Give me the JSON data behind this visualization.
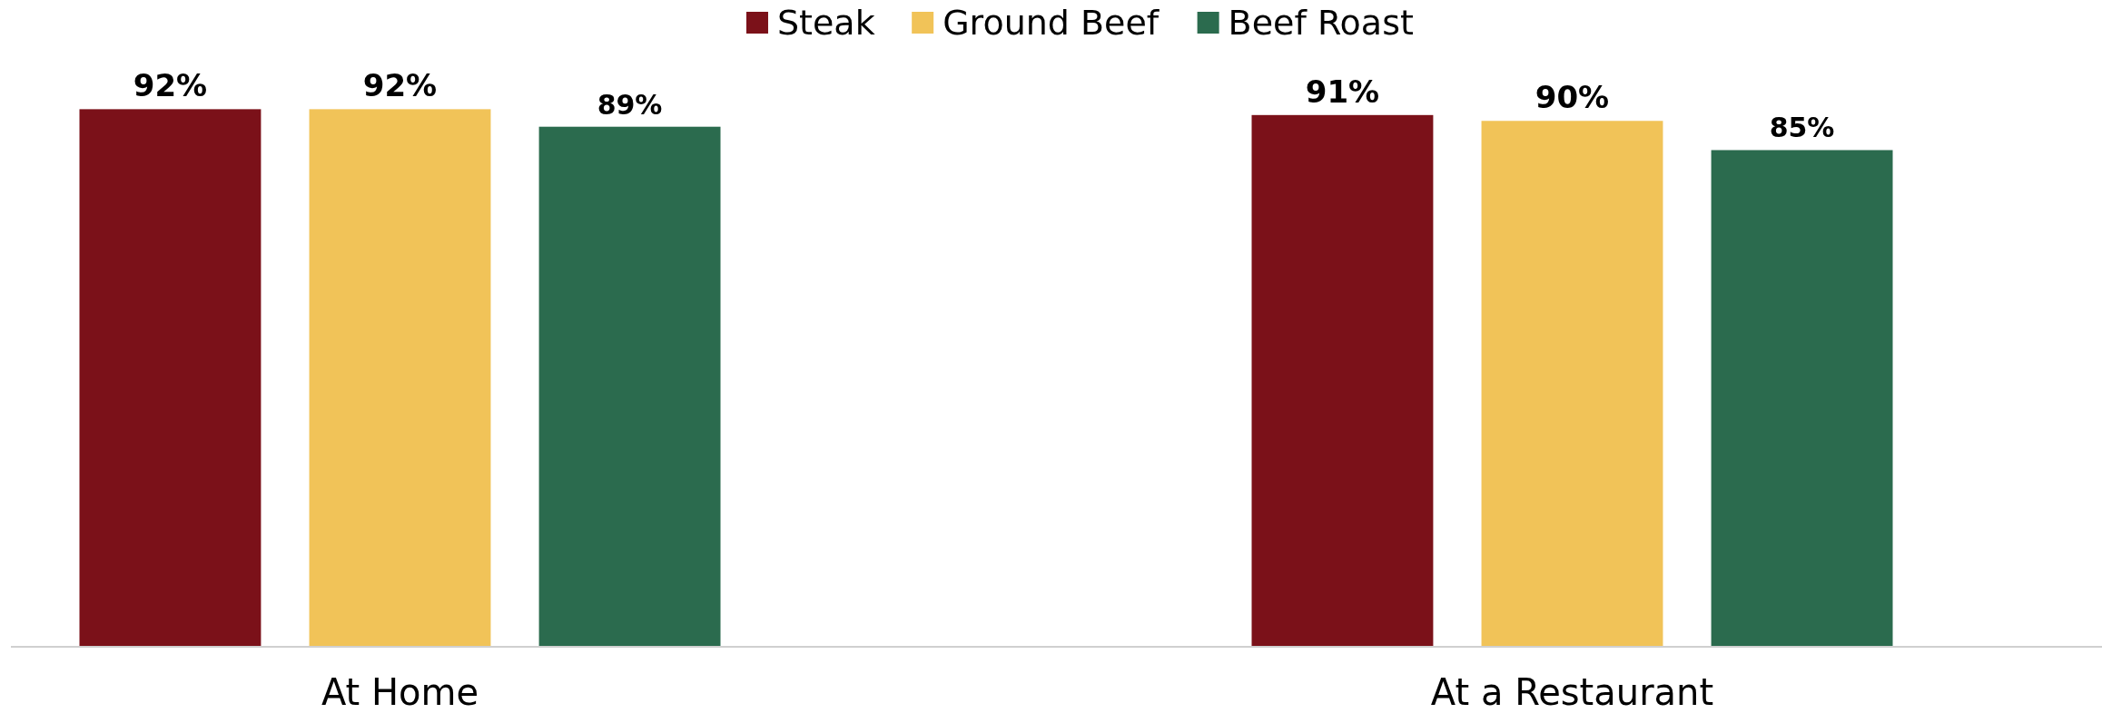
{
  "chart_data": {
    "type": "bar",
    "categories": [
      "At Home",
      "At a Restaurant"
    ],
    "series": [
      {
        "name": "Steak",
        "color": "#7b1119",
        "values": [
          92,
          91
        ],
        "value_labels": [
          "92%",
          "91%"
        ]
      },
      {
        "name": "Ground Beef",
        "color": "#f1c358",
        "values": [
          92,
          90
        ],
        "value_labels": [
          "92%",
          "90%"
        ]
      },
      {
        "name": "Beef Roast",
        "color": "#2b6b4e",
        "values": [
          89,
          85
        ],
        "value_labels": [
          "89%",
          "85%"
        ]
      }
    ],
    "legend": "top"
  }
}
